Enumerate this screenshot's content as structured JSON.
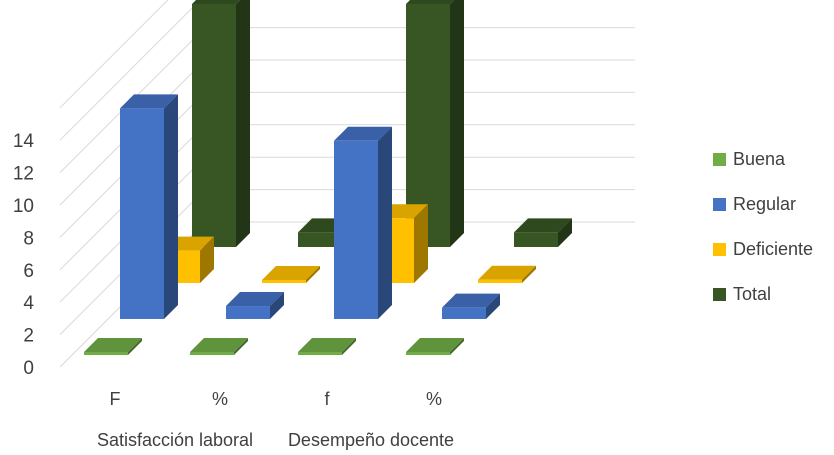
{
  "chart_data": {
    "type": "bar",
    "style": "3d-clustered",
    "categories": [
      "F",
      "%",
      "f",
      "%"
    ],
    "groups": [
      "Satisfacción laboral",
      "Desempeño docente"
    ],
    "series": [
      {
        "name": "Buena",
        "color": "#70AD47",
        "values": [
          0,
          0,
          0,
          0
        ]
      },
      {
        "name": "Regular",
        "color": "#4472C4",
        "values": [
          13,
          0.8,
          11,
          0.7
        ]
      },
      {
        "name": "Deficiente",
        "color": "#FFC000",
        "values": [
          2,
          0.1,
          4,
          0.2
        ]
      },
      {
        "name": "Total",
        "color": "#375623",
        "values": [
          15,
          0.9,
          15,
          0.9
        ]
      }
    ],
    "yticks": [
      "0",
      "2",
      "4",
      "6",
      "8",
      "10",
      "12",
      "14"
    ],
    "ylim": [
      0,
      14
    ],
    "legend": "right",
    "grid": true
  }
}
